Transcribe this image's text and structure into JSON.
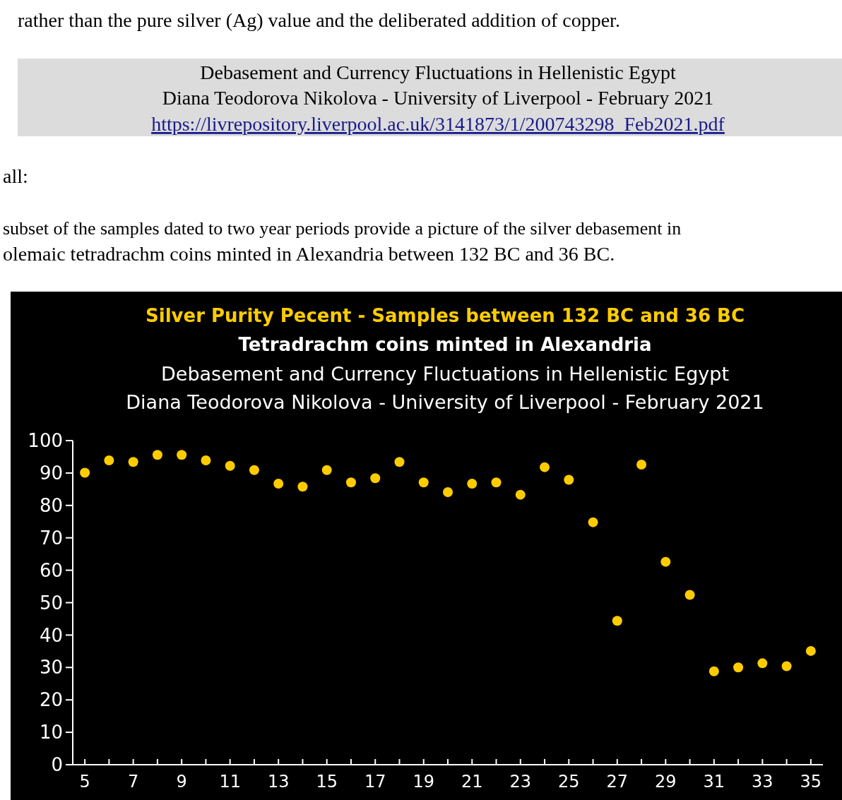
{
  "chart_data": {
    "type": "scatter",
    "title": "Silver Purity Pecent - Samples between 132 BC and 36 BC",
    "subtitle": "Tetradrachm coins minted in Alexandria",
    "annotations": [
      "rather than the pure silver (Ag) value and the deliberated addition of copper.",
      "Debasement and Currency Fluctuations in Hellenistic Egypt",
      "Diana Teodorova Nikolova - University of Liverpool - February 2021",
      "https://livrepository.liverpool.ac.uk/3141873/1/200743298_Feb2021.pdf",
      "all:",
      "subset of the samples dated to two year periods provide a picture of the silver debasement in",
      "olemaic tetradrachm coins minted in Alexandria between 132 BC and 36 BC.",
      "Debasement and Currency Fluctuations in Hellenistic Egypt",
      "Diana Teodorova Nikolova - University of Liverpool - February 2021"
    ],
    "x": [
      5,
      6,
      7,
      8,
      9,
      10,
      11,
      12,
      13,
      14,
      15,
      16,
      17,
      18,
      19,
      20,
      21,
      22,
      23,
      24,
      25,
      26,
      27,
      28,
      29,
      30,
      31,
      32,
      33,
      34,
      35
    ],
    "series": [
      {
        "color": "#ffcc00",
        "values": [
          90.1,
          93.9,
          93.4,
          95.6,
          95.6,
          93.9,
          92.2,
          90.9,
          86.7,
          85.8,
          90.9,
          87.1,
          88.4,
          93.4,
          87.1,
          84.1,
          86.7,
          87.1,
          83.3,
          91.8,
          87.9,
          74.8,
          44.4,
          92.6,
          62.6,
          52.4,
          28.8,
          30.0,
          31.3,
          30.4,
          35.1
        ]
      }
    ],
    "xlim": [
      4.5,
      35.5
    ],
    "xticks": [
      5,
      {
        "value": 6,
        "label": null
      },
      7,
      {
        "value": 8,
        "label": null
      },
      9,
      {
        "value": 10,
        "label": null
      },
      11,
      {
        "value": 12,
        "label": null
      },
      13,
      {
        "value": 14,
        "label": null
      },
      15,
      {
        "value": 16,
        "label": null
      },
      17,
      {
        "value": 18,
        "label": null
      },
      19,
      {
        "value": 20,
        "label": null
      },
      21,
      {
        "value": 22,
        "label": null
      },
      23,
      {
        "value": 24,
        "label": null
      },
      25,
      {
        "value": 26,
        "label": null
      },
      27,
      {
        "value": 28,
        "label": null
      },
      29,
      {
        "value": 30,
        "label": null
      },
      31,
      {
        "value": 32,
        "label": null
      },
      33,
      {
        "value": 34,
        "label": null
      },
      35
    ],
    "ylim": [
      0,
      100
    ],
    "yticks": [
      0,
      10,
      20,
      30,
      40,
      50,
      60,
      70,
      80,
      90,
      100
    ],
    "marker": "circle"
  }
}
